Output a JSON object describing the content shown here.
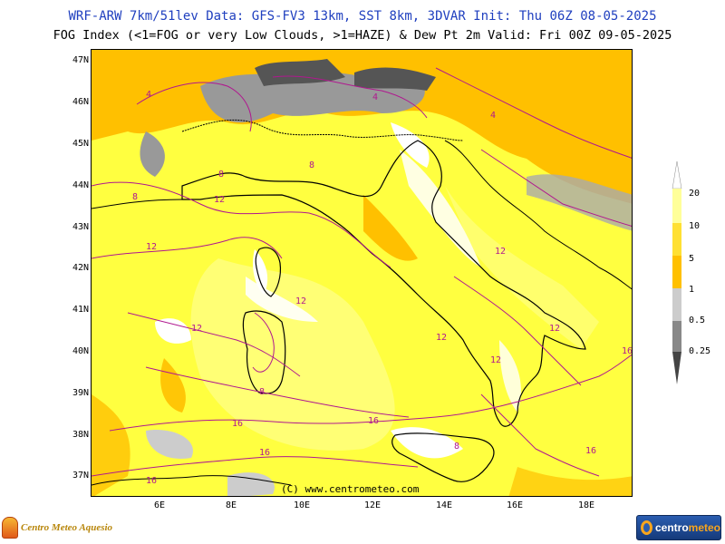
{
  "header": {
    "title_line1": "WRF-ARW 7km/51lev  Data: GFS-FV3 13km, SST 8km, 3DVAR  Init: Thu 06Z 08-05-2025",
    "title_line2": "FOG Index (<1=FOG or very Low Clouds, >1=HAZE) & Dew Pt 2m  Valid: Fri 00Z 09-05-2025"
  },
  "map": {
    "latitude_labels": [
      "47N",
      "46N",
      "45N",
      "44N",
      "43N",
      "42N",
      "41N",
      "40N",
      "39N",
      "38N",
      "37N"
    ],
    "longitude_labels": [
      "6E",
      "8E",
      "10E",
      "12E",
      "14E",
      "16E",
      "18E"
    ],
    "credit": "(C) www.centrometeo.com",
    "contour_labels": [
      "4",
      "8",
      "12",
      "16"
    ],
    "colors": {
      "fog_dense": "#555555",
      "fog": "#999999",
      "low_cloud": "#cccccc",
      "clear": "#ffffff",
      "haze_1_5": "#ffc000",
      "haze_5_10": "#ffe033",
      "haze_10_20": "#ffff40",
      "haze_20_plus": "#ffff99",
      "coastline": "#000000",
      "dewpoint_contour": "#b0188f"
    }
  },
  "legend": {
    "scale_labels": [
      "20",
      "10",
      "5",
      "1",
      "0.5",
      "0.25"
    ]
  },
  "branding": {
    "left_logo_text": "Centro Meteo Aquesio",
    "right_logo_text_part1": "centro",
    "right_logo_text_part2": "meteo"
  }
}
